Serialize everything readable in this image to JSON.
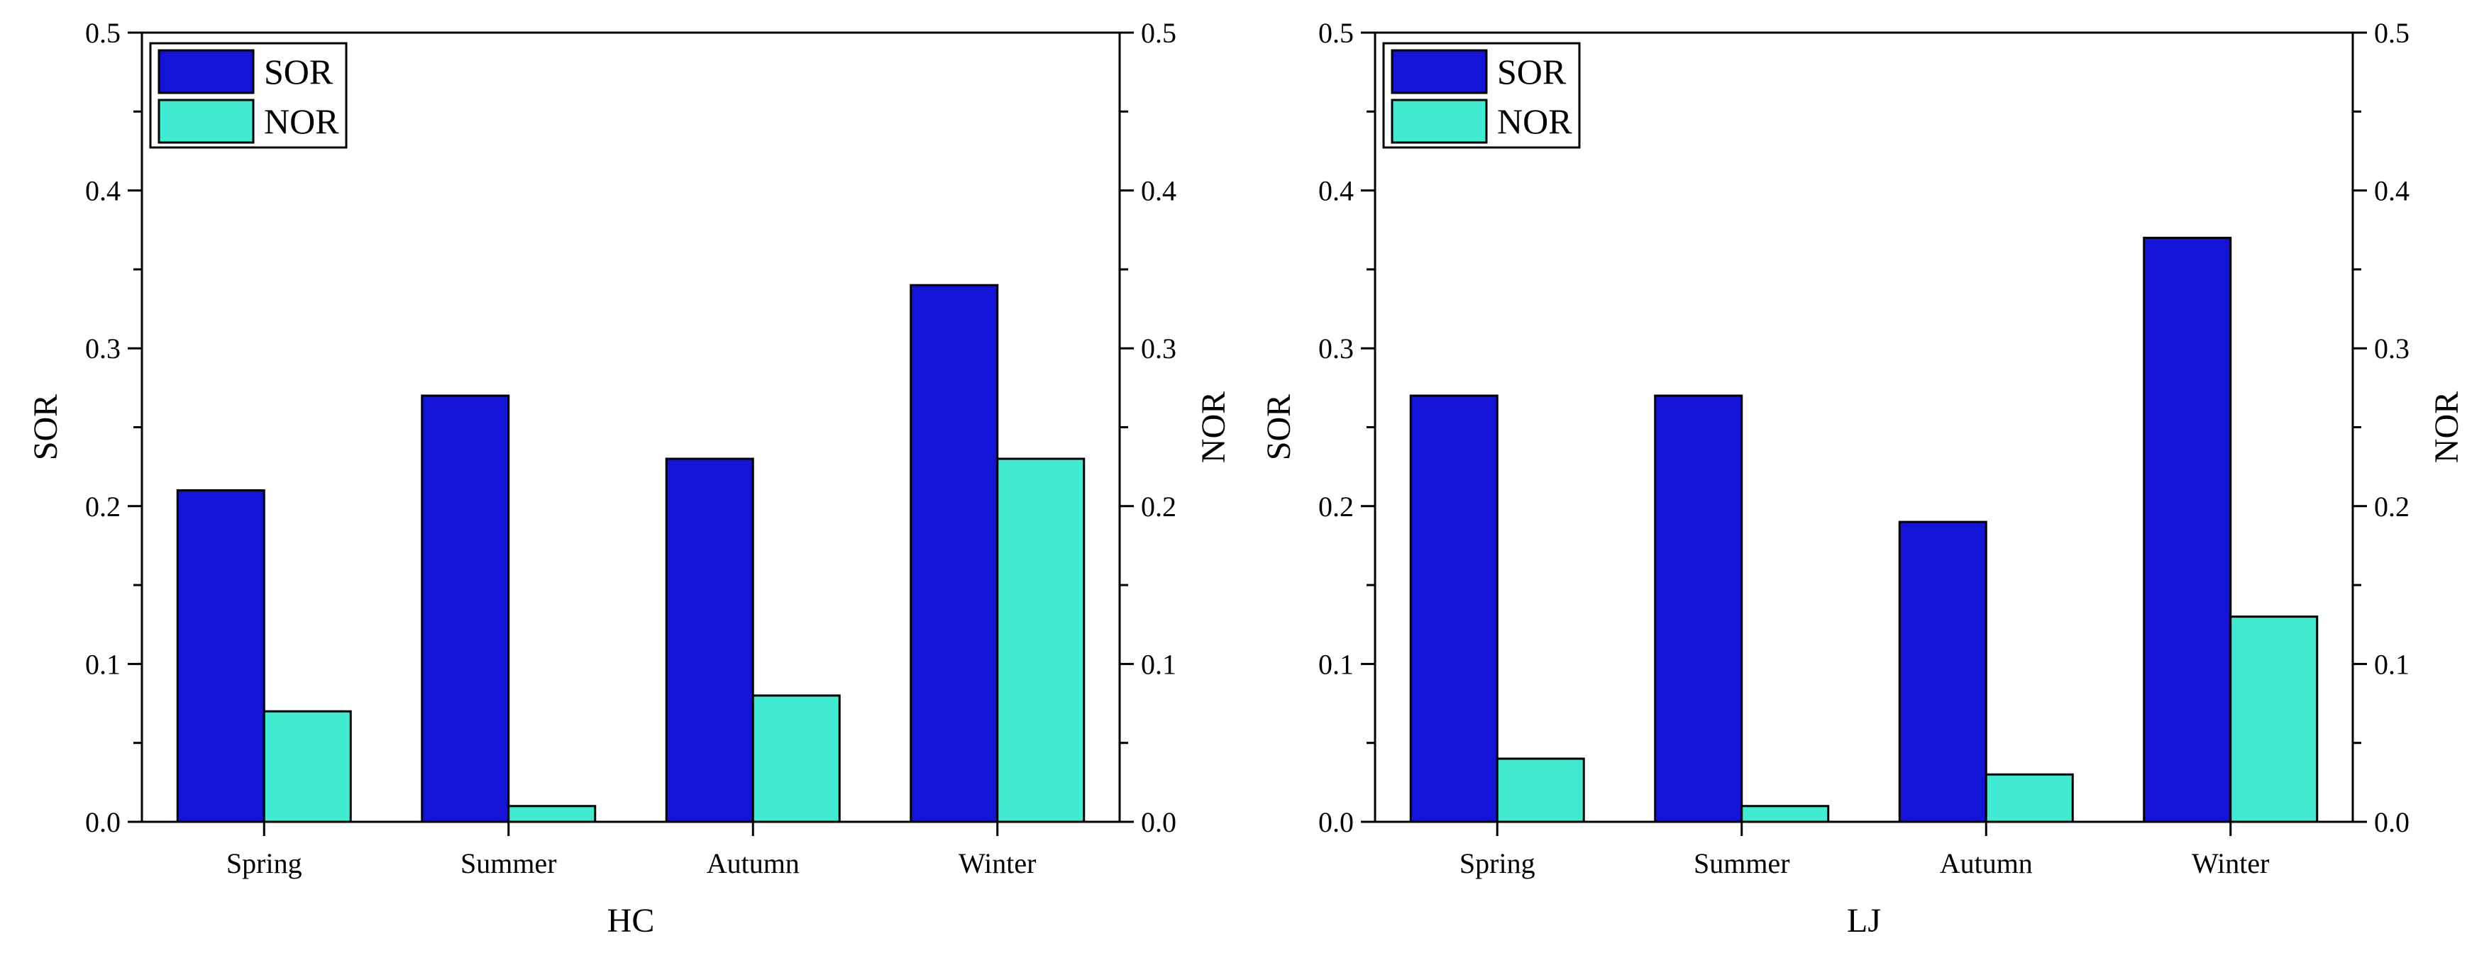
{
  "chart_data": [
    {
      "type": "bar",
      "title": "",
      "xlabel": "HC",
      "ylabel": "SOR",
      "y2label": "NOR",
      "categories": [
        "Spring",
        "Summer",
        "Autumn",
        "Winter"
      ],
      "ylim": [
        0,
        0.5
      ],
      "y2lim": [
        0,
        0.5
      ],
      "yticks": [
        "0.0",
        "0.1",
        "0.2",
        "0.3",
        "0.4",
        "0.5"
      ],
      "series": [
        {
          "name": "SOR",
          "axis": "left",
          "color": "#1414D8",
          "values": [
            0.21,
            0.27,
            0.23,
            0.34
          ]
        },
        {
          "name": "NOR",
          "axis": "right",
          "color": "#40EBD2",
          "values": [
            0.07,
            0.01,
            0.08,
            0.23
          ]
        }
      ],
      "legend": "top-left"
    },
    {
      "type": "bar",
      "title": "",
      "xlabel": "LJ",
      "ylabel": "SOR",
      "y2label": "NOR",
      "categories": [
        "Spring",
        "Summer",
        "Autumn",
        "Winter"
      ],
      "ylim": [
        0,
        0.5
      ],
      "y2lim": [
        0,
        0.5
      ],
      "yticks": [
        "0.0",
        "0.1",
        "0.2",
        "0.3",
        "0.4",
        "0.5"
      ],
      "series": [
        {
          "name": "SOR",
          "axis": "left",
          "color": "#1414D8",
          "values": [
            0.27,
            0.27,
            0.19,
            0.37
          ]
        },
        {
          "name": "NOR",
          "axis": "right",
          "color": "#40EBD2",
          "values": [
            0.04,
            0.01,
            0.03,
            0.13
          ]
        }
      ],
      "legend": "top-left"
    }
  ]
}
